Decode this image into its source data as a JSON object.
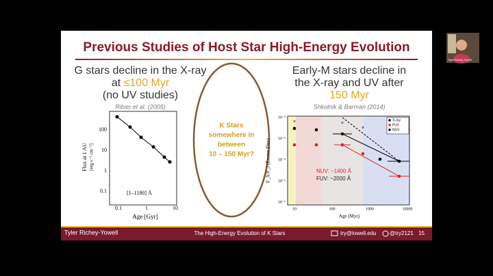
{
  "slide": {
    "title": "Previous Studies of Host Star High-Energy Evolution",
    "left": {
      "line1": "G stars decline in the X-ray",
      "line2_prefix": "at",
      "line2_highlight": "≤100 Myr",
      "line3": "(no UV studies)",
      "citation": "Ribas et al. (2005)",
      "plot": {
        "y_label": "Flux at 1 AU",
        "y_units": "[erg s⁻¹ cm⁻²]",
        "yticks": [
          "100",
          "10",
          "1",
          "0.1"
        ],
        "xticks": [
          "0.1",
          "1",
          "10"
        ],
        "x_label": "Age [Gyr]",
        "annotation": "[1–1180] Å"
      }
    },
    "center": {
      "question": [
        "K Stars",
        "somewhere in",
        "between",
        "10 – 150 Myr?"
      ]
    },
    "right": {
      "line1": "Early-M stars decline in",
      "line2": "the X-ray and UV after",
      "highlight": "150 Myr",
      "citation": "Shkolnik & Barman (2014)",
      "plot": {
        "legend": [
          "X-ray",
          "FUV",
          "NUV"
        ],
        "annotations": [
          "NUV: ~1400 Å",
          "FUV: ~2000 Å"
        ],
        "yticks": [
          "10⁻²",
          "10⁻³",
          "10⁻⁴",
          "10⁻⁵",
          "10⁻⁶"
        ],
        "xticks": [
          "10",
          "100",
          "1000",
          "10000"
        ],
        "x_label": "Age (Myr)",
        "y_label": "F_X/F_J (Excess Flux)"
      }
    },
    "footer": {
      "presenter": "Tyler Richey-Yowell",
      "talk": "The High-Energy Evolution of K Stars",
      "email": "try@lowell.edu",
      "handle": "@try2121",
      "page": "15"
    }
  },
  "video": {
    "participant": "Tyler Richey-Yowell"
  }
}
